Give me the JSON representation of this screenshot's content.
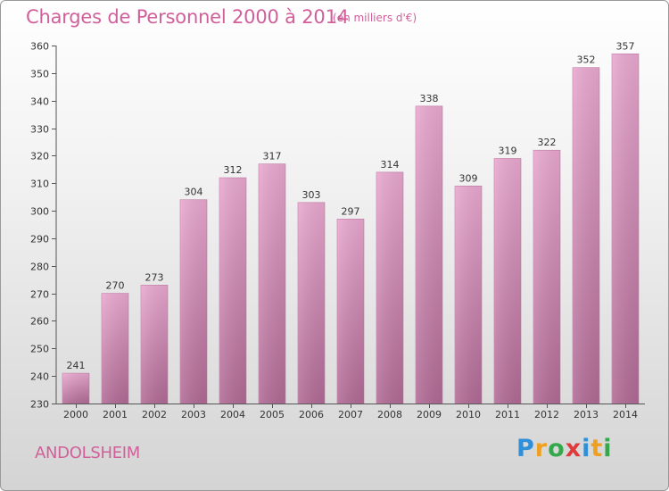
{
  "header": {
    "title": "Charges de Personnel 2000 à 2014",
    "unit": "(en milliers d'€)"
  },
  "footer": {
    "commune": "ANDOLSHEIM",
    "logo_letters": [
      "P",
      "r",
      "o",
      "x",
      "i",
      "t",
      "i"
    ]
  },
  "colors": {
    "bar_top": "#e8a8cf",
    "bar_bottom": "#b06a94",
    "text_accent": "#d1609a"
  },
  "chart_data": {
    "type": "bar",
    "title": "Charges de Personnel 2000 à 2014",
    "subtitle": "(en milliers d'€)",
    "xlabel": "",
    "ylabel": "",
    "categories": [
      "2000",
      "2001",
      "2002",
      "2003",
      "2004",
      "2005",
      "2006",
      "2007",
      "2008",
      "2009",
      "2010",
      "2011",
      "2012",
      "2013",
      "2014"
    ],
    "values": [
      241,
      270,
      273,
      304,
      312,
      317,
      303,
      297,
      314,
      338,
      309,
      319,
      322,
      352,
      357
    ],
    "ylim": [
      230,
      360
    ],
    "yticks": [
      230,
      240,
      250,
      260,
      270,
      280,
      290,
      300,
      310,
      320,
      330,
      340,
      350,
      360
    ],
    "grid": false,
    "legend": "none"
  }
}
